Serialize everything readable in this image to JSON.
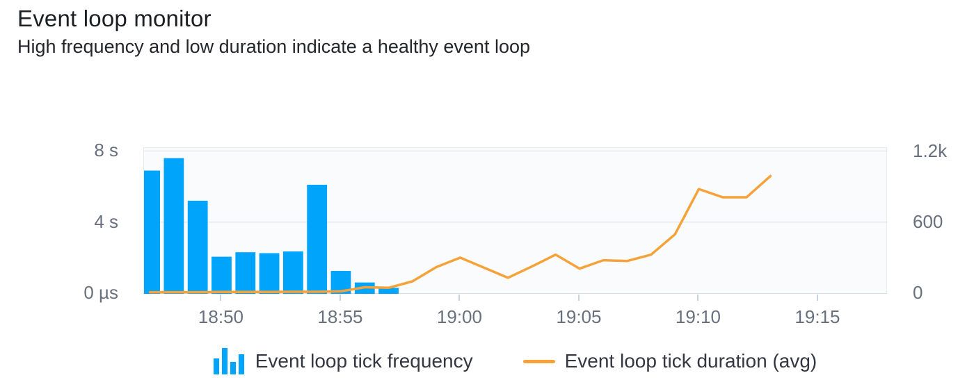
{
  "header": {
    "title": "Event loop monitor",
    "subtitle": "High frequency and low duration indicate a healthy event loop"
  },
  "colors": {
    "bar": "#00a5fb",
    "line": "#f6a23a",
    "title_text": "#1c1e24",
    "axis_text": "#69707d",
    "legend_text": "#343741",
    "plot_bg": "#fafbfc",
    "plot_border": "#e7eaf0",
    "axis_line": "#d6dee9",
    "grid": "#e8eaed",
    "tick": "#c6d3e8"
  },
  "legend": {
    "items": [
      {
        "label": "Event loop tick frequency",
        "icon": "bar-chart-icon"
      },
      {
        "label": "Event loop tick duration (avg)",
        "icon": "line-icon"
      }
    ]
  },
  "chart_data": {
    "type": "combo-bar-line",
    "title": "Event loop monitor",
    "x_axis": {
      "domain_start": "18:46:45",
      "domain_end": "19:17:55",
      "tick_labels": [
        "18:50",
        "18:55",
        "19:00",
        "19:05",
        "19:10",
        "19:15"
      ]
    },
    "left_axis": {
      "series": "Event loop tick frequency",
      "unit": "seconds",
      "max": 8.25,
      "ticks": [
        {
          "v": 0,
          "label": "0 µs"
        },
        {
          "v": 4,
          "label": "4 s"
        },
        {
          "v": 8,
          "label": "8 s"
        }
      ]
    },
    "right_axis": {
      "series": "Event loop tick duration (avg)",
      "max": 1237,
      "ticks": [
        {
          "v": 0,
          "label": "0"
        },
        {
          "v": 600,
          "label": "600"
        },
        {
          "v": 1200,
          "label": "1.2k"
        }
      ]
    },
    "series": [
      {
        "name": "Event loop tick frequency",
        "type": "bar",
        "axis": "left",
        "x": [
          "18:47",
          "18:48",
          "18:49",
          "18:50",
          "18:51",
          "18:52",
          "18:53",
          "18:54",
          "18:55",
          "18:56",
          "18:57"
        ],
        "values": [
          6.9,
          7.6,
          5.2,
          2.05,
          2.3,
          2.25,
          2.35,
          6.1,
          1.25,
          0.6,
          0.3
        ]
      },
      {
        "name": "Event loop tick duration (avg)",
        "type": "line",
        "axis": "right",
        "x": [
          "18:47",
          "18:48",
          "18:49",
          "18:50",
          "18:51",
          "18:52",
          "18:53",
          "18:54",
          "18:55",
          "18:56",
          "18:57",
          "18:58",
          "18:59",
          "19:00",
          "19:01",
          "19:02",
          "19:03",
          "19:04",
          "19:05",
          "19:06",
          "19:07",
          "19:08",
          "19:09",
          "19:10",
          "19:11",
          "19:12",
          "19:13"
        ],
        "values": [
          8,
          8,
          8,
          10,
          10,
          10,
          12,
          12,
          15,
          50,
          45,
          100,
          220,
          300,
          215,
          130,
          225,
          325,
          207,
          278,
          272,
          325,
          497,
          880,
          810,
          810,
          990
        ]
      }
    ]
  }
}
